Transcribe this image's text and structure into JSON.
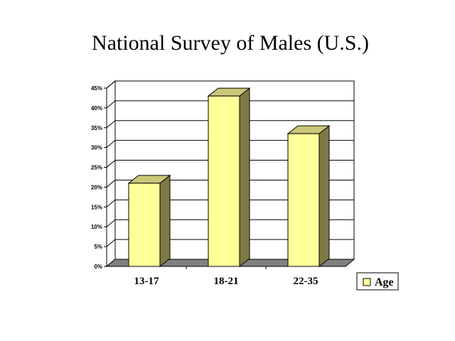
{
  "chart_data": {
    "type": "bar",
    "title": "National Survey of Males (U.S.)",
    "categories": [
      "13-17",
      "18-21",
      "22-35"
    ],
    "series": [
      {
        "name": "Age",
        "values": [
          21,
          43,
          33.5
        ]
      }
    ],
    "ylim": [
      0,
      45
    ],
    "yticks": [
      "0%",
      "5%",
      "10%",
      "15%",
      "20%",
      "25%",
      "30%",
      "35%",
      "40%",
      "45%"
    ],
    "grid": true,
    "legend": "bottom-right",
    "style": "3d"
  },
  "colors": {
    "bar_front": "#ffff99",
    "bar_side": "#7f7a45",
    "bar_top": "#ccc67a",
    "floor": "#808080",
    "grid": "#000000"
  }
}
